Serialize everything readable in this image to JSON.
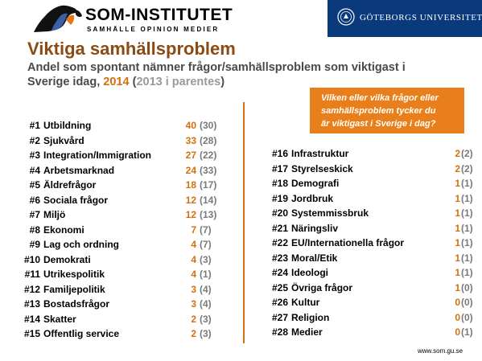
{
  "header": {
    "logo_icon": "scandinavia-map-logo-icon",
    "logo_name": "SOM-INSTITUTET",
    "logo_tagline": "SAMHÄLLE OPINION MEDIER",
    "university_icon": "university-seal-icon",
    "university_name": "GÖTEBORGS UNIVERSITET",
    "university_color": "#0a3a7c"
  },
  "title": "Viktiga samhällsproblem",
  "subtitle": {
    "line1": "Andel som spontant nämner frågor/samhällsproblem som viktigast i",
    "line2_prefix": "Sverige idag,",
    "year": "2014",
    "paren_open": "(",
    "prev_note": "2013 i parentes",
    "paren_close": ")"
  },
  "question": {
    "line1": "Vilken eller vilka frågor eller",
    "line2": "samhällsproblem tycker du",
    "line3": "är viktigast i Sverige i dag?",
    "color": "#e97f1b"
  },
  "accent_color": "#d4700e",
  "left_items": [
    {
      "rank": "#1",
      "label": "Utbildning",
      "value": "40",
      "prev": "(30)"
    },
    {
      "rank": "#2",
      "label": "Sjukvård",
      "value": "33",
      "prev": "(28)"
    },
    {
      "rank": "#3",
      "label": "Integration/Immigration",
      "value": "27",
      "prev": "(22)"
    },
    {
      "rank": "#4",
      "label": "Arbetsmarknad",
      "value": "24",
      "prev": "(33)"
    },
    {
      "rank": "#5",
      "label": "Äldrefrågor",
      "value": "18",
      "prev": "(17)"
    },
    {
      "rank": "#6",
      "label": "Sociala frågor",
      "value": "12",
      "prev": "(14)"
    },
    {
      "rank": "#7",
      "label": "Miljö",
      "value": "12",
      "prev": "(13)"
    },
    {
      "rank": "#8",
      "label": "Ekonomi",
      "value": "7",
      "prev": "(7)"
    },
    {
      "rank": "#9",
      "label": "Lag och ordning",
      "value": "4",
      "prev": "(7)"
    },
    {
      "rank": "#10",
      "label": "Demokrati",
      "value": "4",
      "prev": "(3)"
    },
    {
      "rank": "#11",
      "label": "Utrikespolitik",
      "value": "4",
      "prev": "(1)"
    },
    {
      "rank": "#12",
      "label": "Familjepolitik",
      "value": "3",
      "prev": "(4)"
    },
    {
      "rank": "#13",
      "label": "Bostadsfrågor",
      "value": "3",
      "prev": "(4)"
    },
    {
      "rank": "#14",
      "label": "Skatter",
      "value": "2",
      "prev": "(3)"
    },
    {
      "rank": "#15",
      "label": "Offentlig service",
      "value": "2",
      "prev": "(3)"
    }
  ],
  "right_items": [
    {
      "rank": "#16",
      "label": "Infrastruktur",
      "value": "2",
      "prev": "(2)"
    },
    {
      "rank": "#17",
      "label": "Styrelseskick",
      "value": "2",
      "prev": "(2)"
    },
    {
      "rank": "#18",
      "label": "Demografi",
      "value": "1",
      "prev": "(1)"
    },
    {
      "rank": "#19",
      "label": "Jordbruk",
      "value": "1",
      "prev": "(1)"
    },
    {
      "rank": "#20",
      "label": "Systemmissbruk",
      "value": "1",
      "prev": "(1)"
    },
    {
      "rank": "#21",
      "label": "Näringsliv",
      "value": "1",
      "prev": "(1)"
    },
    {
      "rank": "#22",
      "label": "EU/Internationella frågor",
      "value": "1",
      "prev": "(1)"
    },
    {
      "rank": "#23",
      "label": "Moral/Etik",
      "value": "1",
      "prev": "(1)"
    },
    {
      "rank": "#24",
      "label": "Ideologi",
      "value": "1",
      "prev": "(1)"
    },
    {
      "rank": "#25",
      "label": "Övriga frågor",
      "value": "1",
      "prev": "(0)"
    },
    {
      "rank": "#26",
      "label": "Kultur",
      "value": "0",
      "prev": "(0)"
    },
    {
      "rank": "#27",
      "label": "Religion",
      "value": "0",
      "prev": "(0)"
    },
    {
      "rank": "#28",
      "label": "Medier",
      "value": "0",
      "prev": "(1)"
    }
  ],
  "footer": "www.som.gu.se"
}
